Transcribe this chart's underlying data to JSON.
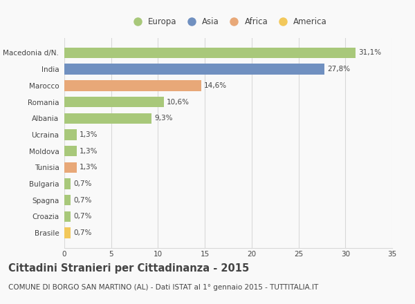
{
  "categories": [
    "Brasile",
    "Croazia",
    "Spagna",
    "Bulgaria",
    "Tunisia",
    "Moldova",
    "Ucraina",
    "Albania",
    "Romania",
    "Marocco",
    "India",
    "Macedonia d/N."
  ],
  "values": [
    0.7,
    0.7,
    0.7,
    0.7,
    1.3,
    1.3,
    1.3,
    9.3,
    10.6,
    14.6,
    27.8,
    31.1
  ],
  "labels": [
    "0,7%",
    "0,7%",
    "0,7%",
    "0,7%",
    "1,3%",
    "1,3%",
    "1,3%",
    "9,3%",
    "10,6%",
    "14,6%",
    "27,8%",
    "31,1%"
  ],
  "colors": [
    "#f2c85b",
    "#a8c87a",
    "#a8c87a",
    "#a8c87a",
    "#e8a878",
    "#a8c87a",
    "#a8c87a",
    "#a8c87a",
    "#a8c87a",
    "#e8a878",
    "#7090c0",
    "#a8c87a"
  ],
  "legend_labels": [
    "Europa",
    "Asia",
    "Africa",
    "America"
  ],
  "legend_colors": [
    "#a8c87a",
    "#7090c0",
    "#e8a878",
    "#f2c85b"
  ],
  "title": "Cittadini Stranieri per Cittadinanza - 2015",
  "subtitle": "COMUNE DI BORGO SAN MARTINO (AL) - Dati ISTAT al 1° gennaio 2015 - TUTTITALIA.IT",
  "xlim": [
    0,
    35
  ],
  "xticks": [
    0,
    5,
    10,
    15,
    20,
    25,
    30,
    35
  ],
  "background_color": "#f9f9f9",
  "grid_color": "#d8d8d8",
  "bar_height": 0.65,
  "title_fontsize": 10.5,
  "subtitle_fontsize": 7.5,
  "label_fontsize": 7.5,
  "tick_fontsize": 7.5,
  "legend_fontsize": 8.5,
  "text_color": "#444444"
}
